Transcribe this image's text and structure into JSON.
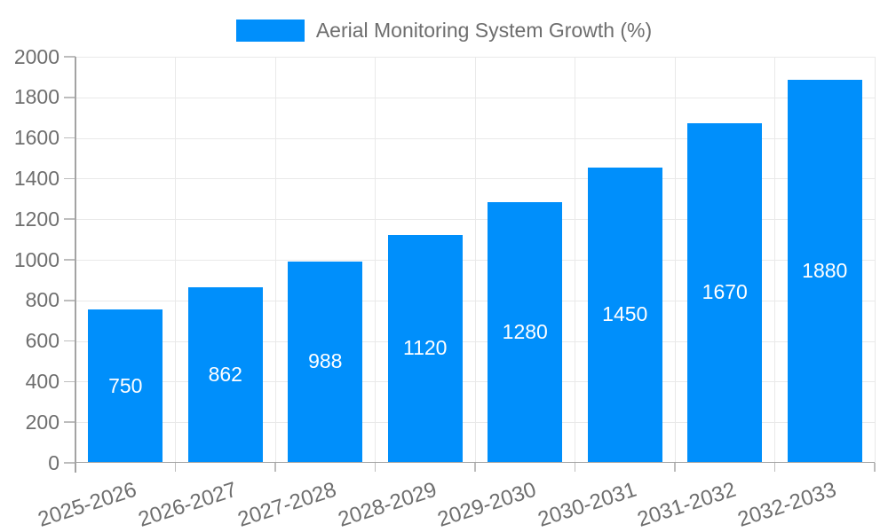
{
  "legend": {
    "label": "Aerial Monitoring System Growth (%)"
  },
  "chart_data": {
    "type": "bar",
    "title": "",
    "xlabel": "",
    "ylabel": "",
    "categories": [
      "2025-2026",
      "2026-2027",
      "2027-2028",
      "2028-2029",
      "2029-2030",
      "2030-2031",
      "2031-2032",
      "2032-2033"
    ],
    "series": [
      {
        "name": "Aerial Monitoring System Growth (%)",
        "values": [
          750,
          862,
          988,
          1120,
          1280,
          1450,
          1670,
          1880
        ]
      }
    ],
    "bar_value_labels": [
      "750",
      "862",
      "988",
      "1120",
      "1280",
      "1450",
      "1670",
      "1880"
    ],
    "ylim": [
      0,
      2000
    ],
    "yticks": [
      0,
      200,
      400,
      600,
      800,
      1000,
      1200,
      1400,
      1600,
      1800,
      2000
    ],
    "grid": true,
    "legend_position": "top",
    "x_label_rotation_deg": -18,
    "data_label_position": "bar-center"
  },
  "colors": {
    "accent": "#008FFB",
    "grid": "#e9e9e9",
    "axis": "#a3a3a3",
    "tick": "#bdbdbd",
    "text": "#6e6e6e",
    "bar_label": "#ffffff",
    "background": "#ffffff"
  }
}
